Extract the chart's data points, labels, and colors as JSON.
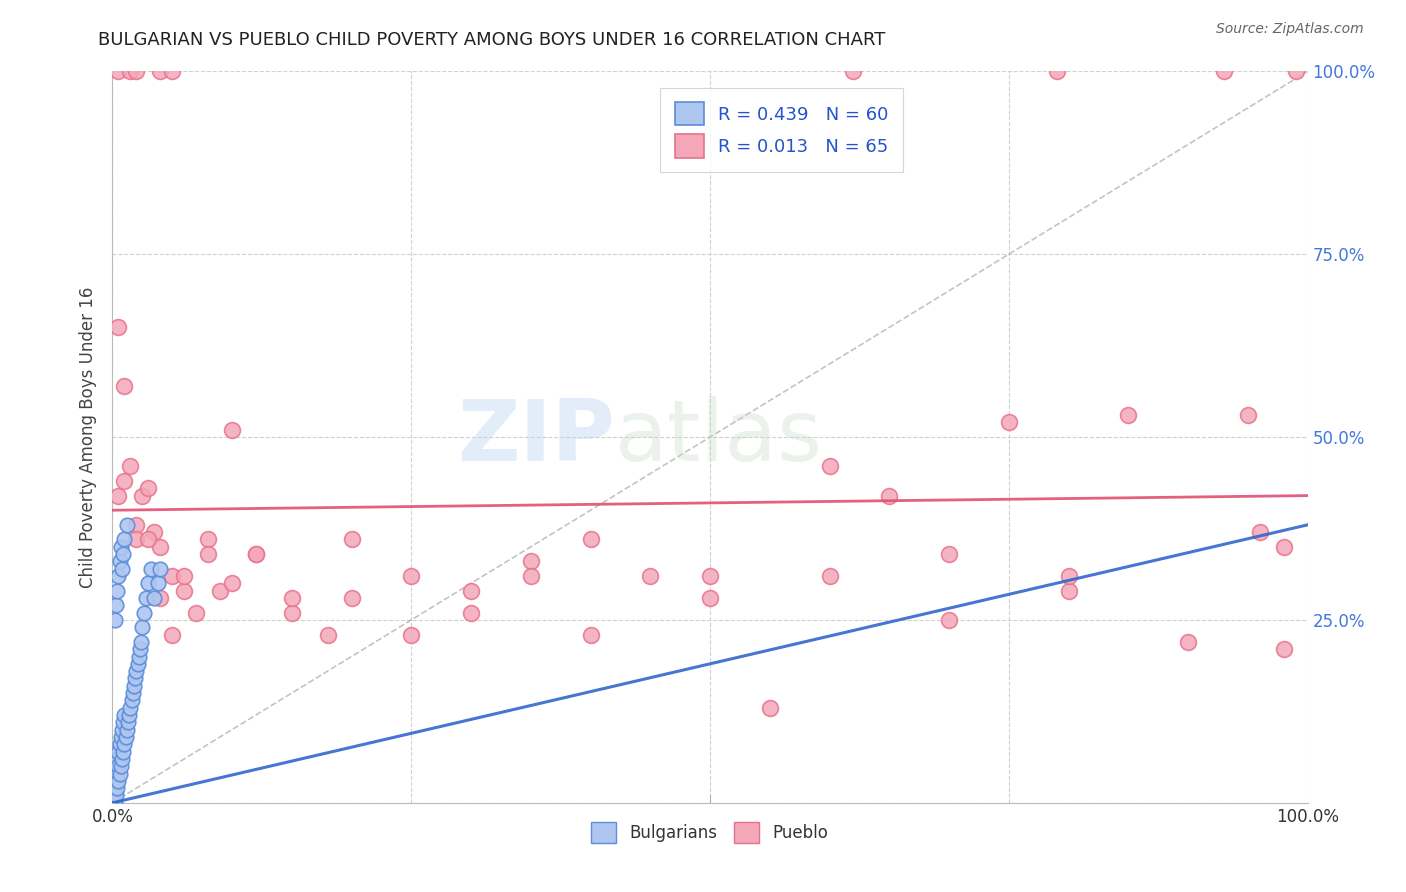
{
  "title": "BULGARIAN VS PUEBLO CHILD POVERTY AMONG BOYS UNDER 16 CORRELATION CHART",
  "source": "Source: ZipAtlas.com",
  "ylabel": "Child Poverty Among Boys Under 16",
  "xlim": [
    0,
    1
  ],
  "ylim": [
    0,
    1
  ],
  "bulgarian_color": "#aec6f0",
  "pueblo_color": "#f4a7b9",
  "bulgarian_edge": "#5b8dd9",
  "pueblo_edge": "#e8728a",
  "regression_blue_color": "#3366cc",
  "regression_pink_color": "#e05070",
  "diagonal_color": "#aaaaaa",
  "legend_text1": "R = 0.439   N = 60",
  "legend_text2": "R = 0.013   N = 65",
  "watermark_zip": "ZIP",
  "watermark_atlas": "atlas",
  "bg_color": "#ffffff",
  "grid_color": "#cccccc",
  "right_tick_color": "#4477dd",
  "bulgarian_x": [
    0.001,
    0.001,
    0.001,
    0.001,
    0.001,
    0.002,
    0.002,
    0.002,
    0.002,
    0.003,
    0.003,
    0.003,
    0.004,
    0.004,
    0.004,
    0.005,
    0.005,
    0.005,
    0.006,
    0.006,
    0.007,
    0.007,
    0.008,
    0.008,
    0.009,
    0.009,
    0.01,
    0.01,
    0.011,
    0.012,
    0.013,
    0.014,
    0.015,
    0.016,
    0.017,
    0.018,
    0.019,
    0.02,
    0.021,
    0.022,
    0.023,
    0.024,
    0.025,
    0.026,
    0.028,
    0.03,
    0.032,
    0.035,
    0.038,
    0.04,
    0.002,
    0.003,
    0.004,
    0.005,
    0.006,
    0.007,
    0.008,
    0.009,
    0.01,
    0.012
  ],
  "bulgarian_y": [
    0.0,
    0.01,
    0.02,
    0.03,
    0.04,
    0.0,
    0.02,
    0.04,
    0.06,
    0.01,
    0.03,
    0.05,
    0.02,
    0.04,
    0.06,
    0.03,
    0.05,
    0.07,
    0.04,
    0.08,
    0.05,
    0.09,
    0.06,
    0.1,
    0.07,
    0.11,
    0.08,
    0.12,
    0.09,
    0.1,
    0.11,
    0.12,
    0.13,
    0.14,
    0.15,
    0.16,
    0.17,
    0.18,
    0.19,
    0.2,
    0.21,
    0.22,
    0.24,
    0.26,
    0.28,
    0.3,
    0.32,
    0.28,
    0.3,
    0.32,
    0.25,
    0.27,
    0.29,
    0.31,
    0.33,
    0.35,
    0.32,
    0.34,
    0.36,
    0.38
  ],
  "pueblo_x_top": [
    0.005,
    0.015,
    0.02,
    0.04,
    0.05,
    0.62,
    0.79,
    0.93,
    0.99
  ],
  "pueblo_y_top": [
    1.0,
    1.0,
    1.0,
    1.0,
    1.0,
    1.0,
    1.0,
    1.0,
    1.0
  ],
  "pueblo_x_mid": [
    0.005,
    0.01,
    0.015,
    0.02,
    0.025,
    0.03,
    0.035,
    0.04,
    0.05,
    0.06,
    0.08,
    0.1,
    0.12,
    0.15,
    0.18,
    0.2,
    0.25,
    0.3,
    0.35,
    0.4,
    0.45,
    0.5,
    0.55,
    0.6,
    0.65,
    0.7,
    0.75,
    0.8,
    0.85,
    0.9,
    0.95,
    0.98,
    0.96,
    0.98,
    0.005,
    0.01,
    0.02,
    0.03,
    0.04,
    0.05,
    0.06,
    0.07,
    0.08,
    0.09,
    0.1,
    0.12,
    0.15,
    0.2,
    0.25,
    0.3,
    0.35,
    0.4,
    0.5,
    0.6,
    0.7,
    0.8
  ],
  "pueblo_y_mid": [
    0.42,
    0.44,
    0.46,
    0.38,
    0.42,
    0.43,
    0.37,
    0.35,
    0.31,
    0.29,
    0.36,
    0.51,
    0.34,
    0.26,
    0.23,
    0.36,
    0.31,
    0.29,
    0.33,
    0.36,
    0.31,
    0.31,
    0.13,
    0.46,
    0.42,
    0.34,
    0.52,
    0.29,
    0.53,
    0.22,
    0.53,
    0.35,
    0.37,
    0.21,
    0.65,
    0.57,
    0.36,
    0.36,
    0.28,
    0.23,
    0.31,
    0.26,
    0.34,
    0.29,
    0.3,
    0.34,
    0.28,
    0.28,
    0.23,
    0.26,
    0.31,
    0.23,
    0.28,
    0.31,
    0.25,
    0.31
  ],
  "pueblo_regression_y0": 0.4,
  "pueblo_regression_y1": 0.42,
  "bulgarian_regression_y0": 0.0,
  "bulgarian_regression_y1": 0.38
}
